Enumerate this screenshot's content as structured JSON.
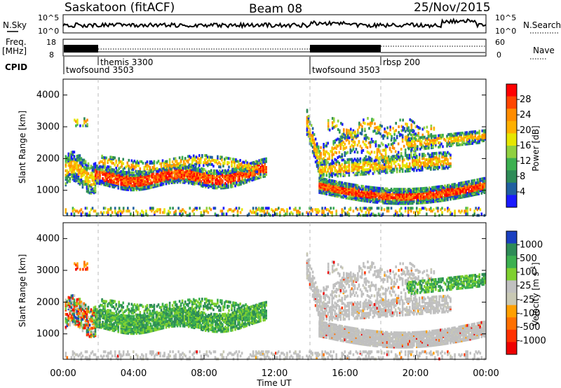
{
  "header": {
    "title": "Saskatoon (fitACF)",
    "beam": "Beam 08",
    "date": "25/Nov/2015"
  },
  "noise_panel": {
    "left_label": "N.Sky",
    "left_ticks": [
      "10^5",
      "10^0"
    ],
    "right_ticks": [
      "10^5",
      "10^0"
    ],
    "right_label": "N.Search"
  },
  "freq_panel": {
    "label_line1": "Freq.",
    "label_line2": "[MHz]",
    "left_ticks": [
      "18",
      "8"
    ],
    "right_ticks": [
      "60",
      "0"
    ],
    "right_label": "Nave"
  },
  "cpid": {
    "label": "CPID",
    "segments": [
      {
        "name": "twofsound 3503",
        "start_hour": 0.0
      },
      {
        "name": "themis 3300",
        "start_hour": 2.0
      },
      {
        "name": "twofsound 3503",
        "start_hour": 14.0
      },
      {
        "name": "rbsp 200",
        "start_hour": 18.0
      }
    ]
  },
  "chart_data": [
    {
      "type": "heatmap",
      "name": "power",
      "ylabel": "Slant Range [km]",
      "yticks": [
        "4000",
        "3000",
        "2000",
        "1000"
      ],
      "ylim": [
        200,
        4500
      ],
      "xlim": [
        0,
        24
      ],
      "colorbar": {
        "label": "Power [dB]",
        "ticks": [
          "28",
          "24",
          "20",
          "16",
          "12",
          "8",
          "4"
        ],
        "colors": [
          "#ff0000",
          "#ff4500",
          "#ff8c00",
          "#ffb000",
          "#e6e600",
          "#90d040",
          "#3cb050",
          "#2e8b57",
          "#2060a0",
          "#1a1aff"
        ]
      }
    },
    {
      "type": "heatmap",
      "name": "velocity",
      "ylabel": "Slant Range [km]",
      "yticks": [
        "4000",
        "3000",
        "2000",
        "1000"
      ],
      "ylim": [
        200,
        4500
      ],
      "xlim": [
        0,
        24
      ],
      "xticks": [
        "00:00",
        "04:00",
        "08:00",
        "12:00",
        "16:00",
        "20:00",
        "00:00"
      ],
      "xlabel": "Time UT",
      "colorbar": {
        "label": "Velocity [m s^-1]",
        "ticks": [
          "1000",
          "500",
          "100",
          "25",
          "-25",
          "-100",
          "-500",
          "-1000"
        ],
        "colors": [
          "#1a3fc0",
          "#2e8b57",
          "#3cb050",
          "#7fd030",
          "#c0c0c0",
          "#c8c8b4",
          "#ffa000",
          "#ff7000",
          "#ff3000",
          "#ee0000"
        ]
      }
    }
  ]
}
